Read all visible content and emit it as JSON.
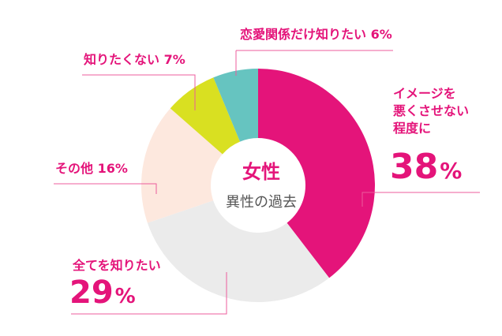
{
  "chart_data": {
    "type": "pie",
    "title": "女性",
    "subtitle": "異性の過去",
    "slices": [
      {
        "label_lines": [
          "イメージを",
          "悪くさせない",
          "程度に"
        ],
        "value": 38,
        "value_text": "38",
        "unit": "%",
        "color": "#e4147a"
      },
      {
        "label_lines": [
          "全てを知りたい"
        ],
        "value": 29,
        "value_text": "29",
        "unit": "%",
        "color": "#ebebeb"
      },
      {
        "label_lines": [
          "その他 16%"
        ],
        "value": 16,
        "color": "#fde8de"
      },
      {
        "label_lines": [
          "知りたくない 7%"
        ],
        "value": 7,
        "color": "#d9e021"
      },
      {
        "label_lines": [
          "恋愛関係だけ知りたい 6%"
        ],
        "value": 6,
        "color": "#66c4c0"
      }
    ]
  }
}
